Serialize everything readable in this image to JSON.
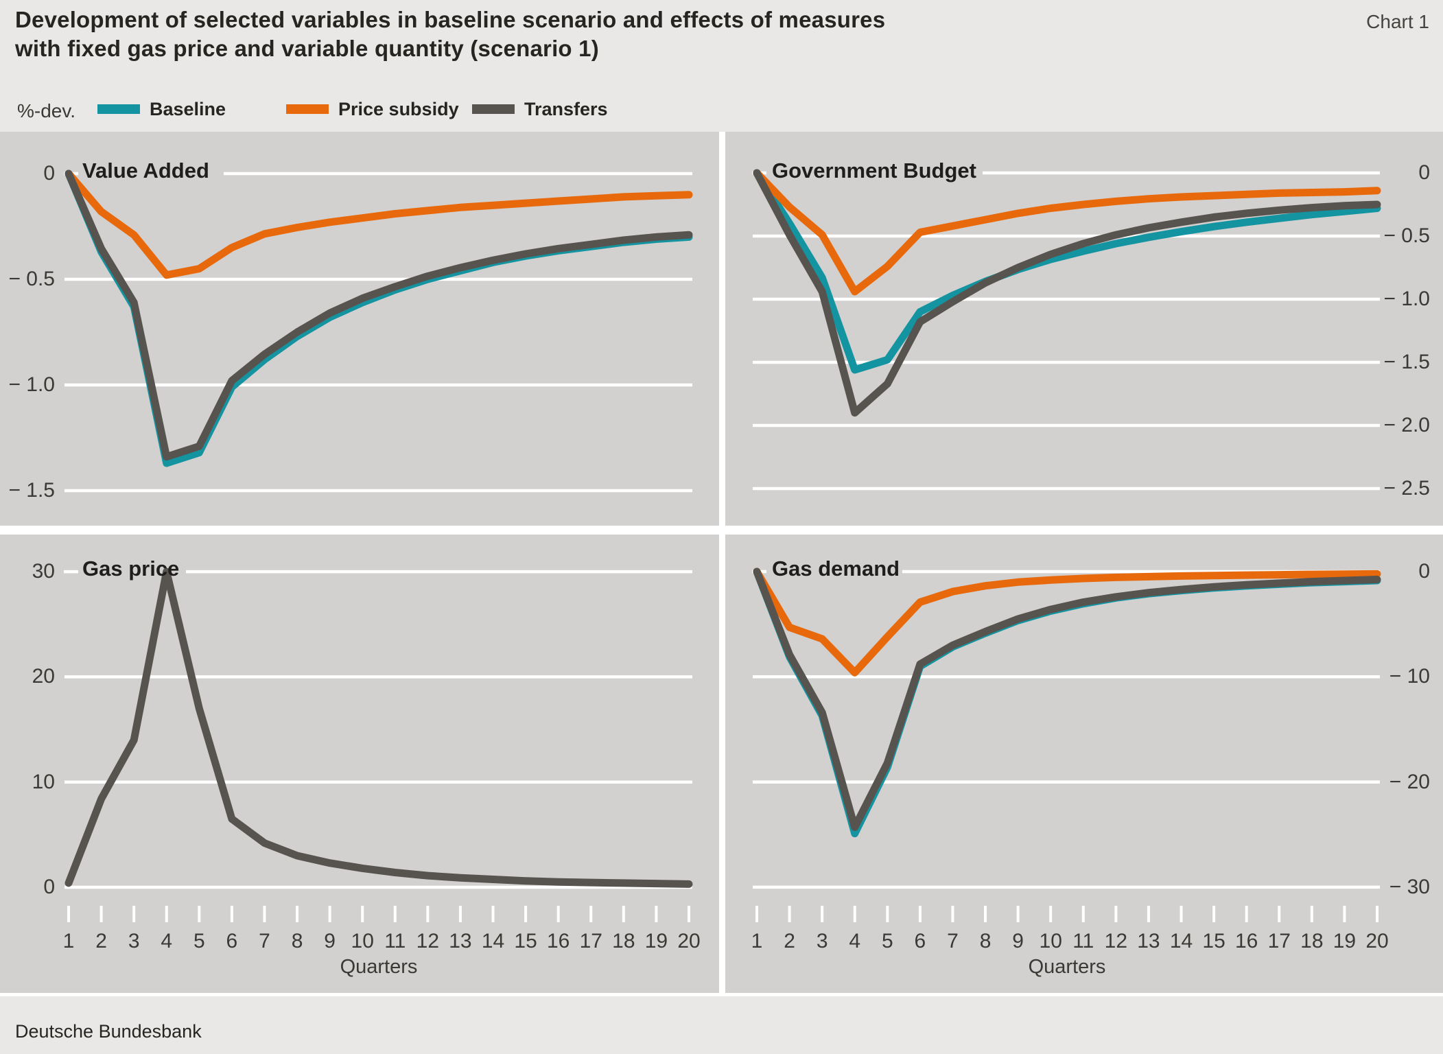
{
  "header": {
    "title_line1": "Development of selected variables in baseline scenario and effects of measures",
    "title_line2": "with fixed gas price and variable quantity (scenario 1)",
    "chart_label": "Chart 1"
  },
  "legend": {
    "axis_note": "%-dev.",
    "items": [
      {
        "label": "Baseline",
        "color": "#1494a1"
      },
      {
        "label": "Price subsidy",
        "color": "#e8690b"
      },
      {
        "label": "Transfers",
        "color": "#57534f"
      }
    ]
  },
  "colors": {
    "baseline": "#1494a1",
    "price_subsidy": "#e8690b",
    "transfers": "#57534f",
    "panel_background": "#d2d1cf",
    "page_background": "#e9e8e6",
    "gridline": "#ffffff"
  },
  "x_axis": {
    "label": "Quarters",
    "quarters": [
      "1",
      "2",
      "3",
      "4",
      "5",
      "6",
      "7",
      "8",
      "9",
      "10",
      "11",
      "12",
      "13",
      "14",
      "15",
      "16",
      "17",
      "18",
      "19",
      "20"
    ]
  },
  "footer": {
    "source": "Deutsche Bundesbank"
  },
  "chart_data": [
    {
      "type": "line",
      "title": "Value Added",
      "unit": "%-dev.",
      "axis_side": "left",
      "xlabel": "Quarters",
      "x": [
        1,
        2,
        3,
        4,
        5,
        6,
        7,
        8,
        9,
        10,
        11,
        12,
        13,
        14,
        15,
        16,
        17,
        18,
        19,
        20
      ],
      "ylim": [
        -1.65,
        0.2
      ],
      "y_gridline_values": [
        0,
        -0.5,
        -1.0,
        -1.5
      ],
      "y_tick_labels": [
        "0",
        "− 0.5",
        "− 1.0",
        "− 1.5"
      ],
      "series": [
        {
          "name": "Baseline",
          "color_key": "baseline",
          "values": [
            0,
            -0.37,
            -0.63,
            -1.37,
            -1.32,
            -1.01,
            -0.88,
            -0.77,
            -0.68,
            -0.61,
            -0.55,
            -0.5,
            -0.46,
            -0.42,
            -0.39,
            -0.365,
            -0.345,
            -0.325,
            -0.31,
            -0.3
          ]
        },
        {
          "name": "Price subsidy",
          "color_key": "price_subsidy",
          "values": [
            0,
            -0.18,
            -0.29,
            -0.48,
            -0.45,
            -0.35,
            -0.285,
            -0.255,
            -0.23,
            -0.21,
            -0.19,
            -0.175,
            -0.16,
            -0.15,
            -0.14,
            -0.13,
            -0.12,
            -0.11,
            -0.105,
            -0.1
          ]
        },
        {
          "name": "Transfers",
          "color_key": "transfers",
          "values": [
            0,
            -0.355,
            -0.61,
            -1.34,
            -1.29,
            -0.98,
            -0.855,
            -0.75,
            -0.66,
            -0.59,
            -0.535,
            -0.485,
            -0.445,
            -0.41,
            -0.38,
            -0.355,
            -0.335,
            -0.315,
            -0.3,
            -0.29
          ]
        }
      ]
    },
    {
      "type": "line",
      "title": "Government Budget",
      "unit": "%-dev.",
      "axis_side": "right",
      "xlabel": "Quarters",
      "x": [
        1,
        2,
        3,
        4,
        5,
        6,
        7,
        8,
        9,
        10,
        11,
        12,
        13,
        14,
        15,
        16,
        17,
        18,
        19,
        20
      ],
      "ylim": [
        -2.8,
        0.33
      ],
      "y_gridline_values": [
        0,
        -0.5,
        -1.0,
        -1.5,
        -2.0,
        -2.5
      ],
      "y_tick_labels": [
        "0",
        "− 0.5",
        "− 1.0",
        "− 1.5",
        "− 2.0",
        "− 2.5"
      ],
      "series": [
        {
          "name": "Baseline",
          "color_key": "baseline",
          "values": [
            0,
            -0.4,
            -0.83,
            -1.56,
            -1.48,
            -1.1,
            -0.97,
            -0.86,
            -0.765,
            -0.685,
            -0.62,
            -0.56,
            -0.51,
            -0.465,
            -0.425,
            -0.39,
            -0.36,
            -0.33,
            -0.305,
            -0.28
          ]
        },
        {
          "name": "Price subsidy",
          "color_key": "price_subsidy",
          "values": [
            0,
            -0.27,
            -0.49,
            -0.94,
            -0.74,
            -0.47,
            -0.42,
            -0.37,
            -0.32,
            -0.28,
            -0.25,
            -0.225,
            -0.205,
            -0.19,
            -0.18,
            -0.17,
            -0.16,
            -0.155,
            -0.15,
            -0.14
          ]
        },
        {
          "name": "Transfers",
          "color_key": "transfers",
          "values": [
            0,
            -0.49,
            -0.94,
            -1.9,
            -1.67,
            -1.18,
            -1.02,
            -0.87,
            -0.75,
            -0.645,
            -0.56,
            -0.49,
            -0.435,
            -0.39,
            -0.35,
            -0.32,
            -0.295,
            -0.275,
            -0.26,
            -0.25
          ]
        }
      ]
    },
    {
      "type": "line",
      "title": "Gas price",
      "unit": "%-dev.",
      "axis_side": "left",
      "xlabel": "Quarters",
      "x": [
        1,
        2,
        3,
        4,
        5,
        6,
        7,
        8,
        9,
        10,
        11,
        12,
        13,
        14,
        15,
        16,
        17,
        18,
        19,
        20
      ],
      "ylim": [
        -1.5,
        33.5
      ],
      "y_gridline_values": [
        30,
        20,
        10,
        0
      ],
      "y_tick_labels": [
        "30",
        "20",
        "10",
        "0"
      ],
      "series": [
        {
          "name": "Gas price",
          "color_key": "transfers",
          "values": [
            0.4,
            8.4,
            14,
            30,
            17,
            6.5,
            4.2,
            3.0,
            2.3,
            1.8,
            1.4,
            1.1,
            0.9,
            0.75,
            0.6,
            0.5,
            0.45,
            0.4,
            0.35,
            0.3
          ]
        }
      ]
    },
    {
      "type": "line",
      "title": "Gas demand",
      "unit": "%-dev.",
      "axis_side": "right",
      "xlabel": "Quarters",
      "x": [
        1,
        2,
        3,
        4,
        5,
        6,
        7,
        8,
        9,
        10,
        11,
        12,
        13,
        14,
        15,
        16,
        17,
        18,
        19,
        20
      ],
      "ylim": [
        -33.5,
        1.5
      ],
      "y_gridline_values": [
        0,
        -10,
        -20,
        -30
      ],
      "y_tick_labels": [
        "0",
        "− 10",
        "− 20",
        "− 30"
      ],
      "series": [
        {
          "name": "Baseline",
          "color_key": "baseline",
          "values": [
            0,
            -8.1,
            -13.7,
            -24.9,
            -18.6,
            -9.0,
            -7.15,
            -5.85,
            -4.65,
            -3.75,
            -3.05,
            -2.5,
            -2.1,
            -1.8,
            -1.55,
            -1.35,
            -1.2,
            -1.05,
            -0.95,
            -0.85
          ]
        },
        {
          "name": "Price subsidy",
          "color_key": "price_subsidy",
          "values": [
            0,
            -5.3,
            -6.4,
            -9.6,
            -6.2,
            -2.9,
            -1.9,
            -1.35,
            -1.0,
            -0.8,
            -0.65,
            -0.55,
            -0.48,
            -0.42,
            -0.37,
            -0.33,
            -0.3,
            -0.27,
            -0.24,
            -0.22
          ]
        },
        {
          "name": "Transfers",
          "color_key": "transfers",
          "values": [
            0,
            -7.9,
            -13.4,
            -24.3,
            -18.2,
            -8.8,
            -7.0,
            -5.7,
            -4.5,
            -3.6,
            -2.9,
            -2.4,
            -2.0,
            -1.7,
            -1.45,
            -1.25,
            -1.1,
            -0.95,
            -0.85,
            -0.75
          ]
        }
      ]
    }
  ]
}
